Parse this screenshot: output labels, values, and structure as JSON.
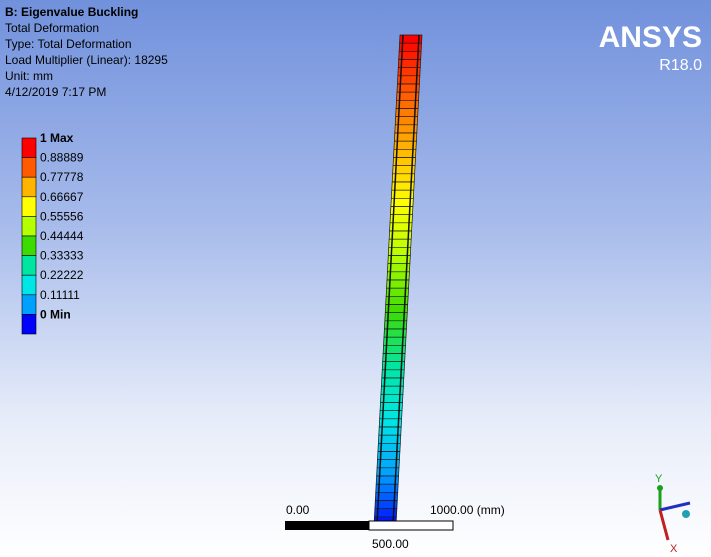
{
  "header": {
    "title": "B: Eigenvalue Buckling",
    "lines": [
      "Total Deformation",
      "Type: Total Deformation",
      "Load Multiplier (Linear): 18295",
      "Unit: mm",
      "4/12/2019 7:17 PM"
    ]
  },
  "logo": {
    "name": "ANSYS",
    "version": "R18.0"
  },
  "legend": {
    "labels": [
      "1 Max",
      "0.88889",
      "0.77778",
      "0.66667",
      "0.55556",
      "0.44444",
      "0.33333",
      "0.22222",
      "0.11111",
      "0 Min"
    ]
  },
  "scale_bar": {
    "left": "0.00",
    "right": "1000.00 (mm)",
    "middle": "500.00"
  },
  "triad": {
    "y": "Y",
    "x": "X"
  }
}
